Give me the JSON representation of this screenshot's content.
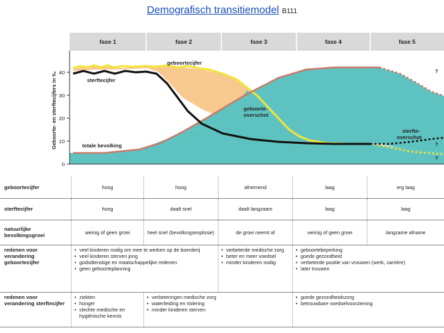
{
  "header": {
    "title": "Demografisch transitiemodel",
    "code": "B111"
  },
  "diagram": {
    "phases": [
      "fase 1",
      "fase 2",
      "fase 3",
      "fase 4",
      "fase 5"
    ],
    "y_axis_label": "Geboorte- en sterftecijfers in ‰",
    "y_ticks": [
      "0",
      "10",
      "20",
      "30",
      "40"
    ],
    "labels": {
      "birth_rate": "geboortecijfer",
      "death_rate": "sterftecijfer",
      "population": "totale bevolking",
      "birth_surplus_1": "geboorte-",
      "birth_surplus_2": "overschot",
      "death_surplus_1": "sterfte-",
      "death_surplus_2": "overschot",
      "q1": "?",
      "q2": "?",
      "q3": "?"
    },
    "colors": {
      "birth_fill": "#f8c98f",
      "death_fill": "#5ec3c0",
      "birth_line": "#f2e43a",
      "death_line": "#111111",
      "population_line": "#c77b6a",
      "header_band": "#d9d9d9"
    }
  },
  "table": {
    "rows": [
      {
        "header": "geboortecijfer",
        "cells": [
          "hoog",
          "hoog",
          "afnemend",
          "laag",
          "erg laag"
        ]
      },
      {
        "header": "sterftecijfer",
        "cells": [
          "hoog",
          "daalt snel",
          "daalt langzaam",
          "laag",
          "laag"
        ]
      },
      {
        "header": "natuurlijke bevolkingsgroei",
        "cells": [
          "weinig of geen groei",
          "heel snel (bevolkingsexplosie)",
          "de groei neemt af",
          "weinig of geen groei",
          "langzame afname"
        ]
      }
    ],
    "reasons_birth": {
      "header": "redenen voor verandering geboortecijfer",
      "col1": [
        "veel kinderen nodig om mee te werken op de boerderij",
        "veel kinderen sterven jong",
        "godsdienstige en maatschappelijke redenen",
        "geen geboorteplanning"
      ],
      "col2": [
        "verbeterde medische zorg",
        "beter en meer voedsel",
        "minder kinderen nodig"
      ],
      "col3": [
        "geboortebeperking",
        "goede gezondheid",
        "verbeterde positie van vrouwen (werk, carrière)",
        "later trouwen"
      ]
    },
    "reasons_death": {
      "header": "redenen voor verandering sterftecijfer",
      "col1": [
        "ziekten",
        "honger",
        "slechte medische en hygiënische kennis"
      ],
      "col2": [
        "verbeteringen medische zorg",
        "waterleiding en riolering",
        "minder kinderen sterven"
      ],
      "col3": [
        "goede gezondheidszorg",
        "betrouwbare voedselvoorziening"
      ]
    }
  }
}
